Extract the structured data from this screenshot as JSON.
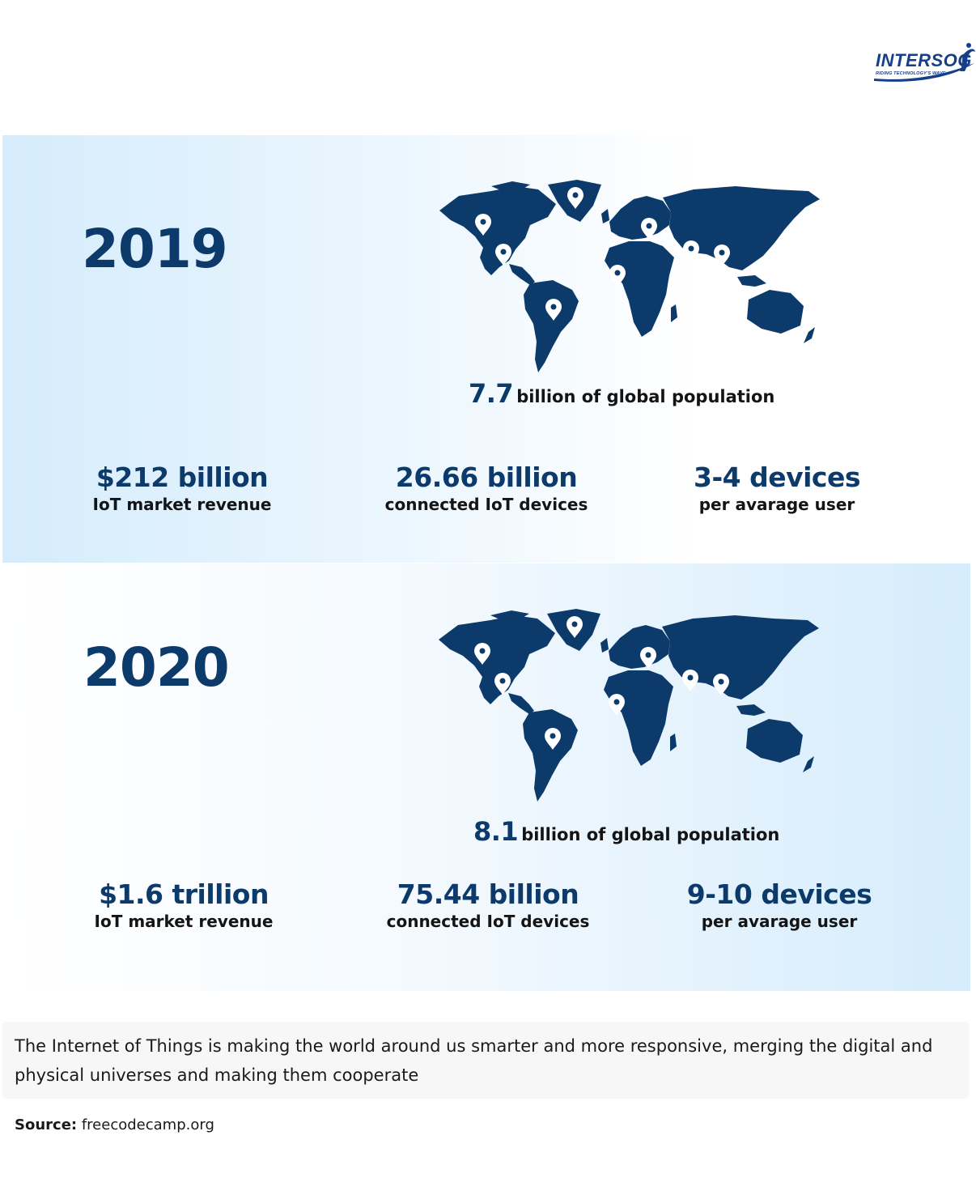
{
  "logo": {
    "name": "INTERSOG",
    "tagline": "RIDING TECHNOLOGY'S WAVE",
    "color": "#153f8a"
  },
  "colors": {
    "accent": "#0b3a6b",
    "panel_light": "#d5ecfc",
    "map": "#0c3a6b",
    "pin": "#ffffff"
  },
  "years": [
    {
      "year": "2019",
      "population": {
        "value": "7.7",
        "text": "billion of global population"
      },
      "stats": [
        {
          "value": "$212 billion",
          "label": "IoT market revenue"
        },
        {
          "value": "26.66 billion",
          "label": "connected IoT devices"
        },
        {
          "value": "3-4 devices",
          "label": "per avarage user"
        }
      ]
    },
    {
      "year": "2020",
      "population": {
        "value": "8.1",
        "text": "billion of global population"
      },
      "stats": [
        {
          "value": "$1.6 trillion",
          "label": "IoT market revenue"
        },
        {
          "value": "75.44 billion",
          "label": "connected IoT devices"
        },
        {
          "value": "9-10 devices",
          "label": "per avarage user"
        }
      ]
    }
  ],
  "note": "The Internet of Things is making the world around us smarter and more responsive, merging the digital and physical universes and making them cooperate",
  "source": {
    "label": "Source:",
    "value": "freecodecamp.org"
  },
  "icons": {
    "map": "world-map-icon",
    "pin": "location-pin-icon",
    "logo_mark": "wave-rider-icon"
  }
}
